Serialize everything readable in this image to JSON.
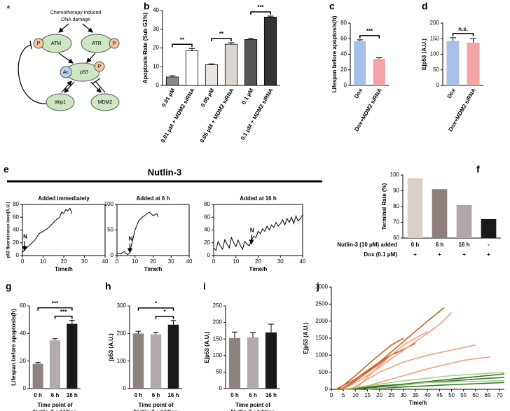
{
  "diagram": {
    "panel": "a",
    "title": [
      "Chemotherapy induced",
      "DNA damage"
    ],
    "nodes": {
      "atm": "ATM",
      "atr": "ATR",
      "p53": "p53",
      "ac": "Ac",
      "p_atm": "P",
      "p_atr": "P",
      "p_p53": "P",
      "wip1": "Wip1",
      "mdm2": "MDM2"
    }
  },
  "nutlin_header": {
    "panel": "e",
    "title": "Nutlin-3"
  },
  "chart_data": [
    {
      "type": "bar",
      "panel": "b",
      "ylabel": "Apoptosis Rate (Sub G1%)",
      "categories": [
        "0.01 μM",
        "0.01 μM + MDM2 siRNA",
        "0.05 μM",
        "0.05 μM + MDM2 siRNA",
        "0.1 μM",
        "0.1 μM + MDM2 siRNA"
      ],
      "values": [
        4.5,
        18.5,
        11,
        22,
        24.5,
        36.5
      ],
      "errors": [
        0.7,
        1.2,
        0.5,
        0.8,
        0.7,
        0.5
      ],
      "colors": [
        "#8a8a8a",
        "#ffffff",
        "#ece6e2",
        "#ddd5d0",
        "#555555",
        "#333333"
      ],
      "edgecolor": "#000000",
      "ylim": [
        0,
        40
      ],
      "yticks": [
        0,
        10,
        20,
        30,
        40
      ],
      "brackets": [
        {
          "pair": [
            0,
            1
          ],
          "label": "**"
        },
        {
          "pair": [
            2,
            3
          ],
          "label": "**"
        },
        {
          "pair": [
            4,
            5
          ],
          "label": "***"
        }
      ]
    },
    {
      "type": "bar",
      "panel": "c",
      "ylabel": "Lifespan before apoptosis(h)",
      "categories": [
        "Dox",
        "Dox+MDM2 siRNA"
      ],
      "values": [
        57,
        34
      ],
      "errors": [
        1.5,
        1.5
      ],
      "colors": [
        "#a8c0e8",
        "#f4a4a4"
      ],
      "ylim": [
        0,
        80
      ],
      "yticks": [
        0,
        20,
        40,
        60,
        80
      ],
      "brackets": [
        {
          "pair": [
            0,
            1
          ],
          "label": "***"
        }
      ]
    },
    {
      "type": "bar",
      "panel": "d",
      "ylabel": "E∫p53 (A.U.)",
      "categories": [
        "Dox",
        "Dox+MDM2 siRNA"
      ],
      "values": [
        143,
        137
      ],
      "errors": [
        10,
        13
      ],
      "colors": [
        "#a8c0e8",
        "#f4a4a4"
      ],
      "ylim": [
        0,
        200
      ],
      "yticks": [
        0,
        50,
        100,
        150,
        200
      ],
      "brackets": [
        {
          "pair": [
            0,
            1
          ],
          "label": "n.s."
        }
      ]
    },
    {
      "type": "line",
      "title": "Added immediately",
      "ylabel": "p53 fluorescence level(A.U.)",
      "xlabel": "Time/h",
      "x": [
        0,
        2,
        4,
        6,
        8,
        10,
        12,
        14,
        16,
        18,
        19,
        20,
        21,
        22,
        23,
        24
      ],
      "series": [
        {
          "color": "#000000",
          "values": [
            5,
            12,
            18,
            24,
            34,
            38,
            42,
            48,
            55,
            60,
            68,
            66,
            72,
            70,
            74,
            65
          ]
        }
      ],
      "xlim": [
        0,
        40
      ],
      "xticks": [
        0,
        10,
        20,
        30,
        40
      ],
      "ylim": [
        0,
        80
      ],
      "yticks": [
        0,
        20,
        40,
        60,
        80
      ],
      "annotations": [
        {
          "text": "N",
          "x": 0
        }
      ]
    },
    {
      "type": "line",
      "title": "Added at 6 h",
      "xlabel": "Time/h",
      "x": [
        0,
        2,
        4,
        5,
        6,
        7,
        8,
        10,
        12,
        14,
        16,
        18,
        20,
        22,
        23
      ],
      "series": [
        {
          "color": "#000000",
          "values": [
            5,
            3,
            8,
            4,
            2,
            5,
            20,
            50,
            68,
            75,
            80,
            85,
            78,
            82,
            76
          ]
        }
      ],
      "xlim": [
        0,
        40
      ],
      "xticks": [
        0,
        10,
        20,
        30,
        40
      ],
      "ylim": [
        0,
        100
      ],
      "yticks": [
        0,
        50,
        100
      ],
      "annotations": [
        {
          "text": "N",
          "x": 6
        }
      ]
    },
    {
      "type": "line",
      "title": "Added at 16 h",
      "xlabel": "Time/h",
      "x": [
        0,
        1,
        2,
        3,
        4,
        5,
        6,
        7,
        8,
        9,
        10,
        11,
        12,
        13,
        14,
        15,
        16,
        17,
        18,
        19,
        20,
        21,
        22,
        23,
        24,
        25,
        26,
        27,
        28,
        29,
        30,
        31,
        32,
        33,
        34,
        35,
        36,
        37,
        38,
        39,
        40
      ],
      "series": [
        {
          "color": "#000000",
          "values": [
            12,
            8,
            22,
            15,
            10,
            25,
            18,
            12,
            28,
            20,
            14,
            24,
            16,
            10,
            22,
            18,
            15,
            24,
            30,
            28,
            38,
            34,
            42,
            38,
            46,
            40,
            48,
            44,
            52,
            46,
            50,
            56,
            48,
            58,
            52,
            60,
            50,
            62,
            54,
            58,
            64
          ]
        }
      ],
      "xlim": [
        0,
        40
      ],
      "xticks": [
        0,
        10,
        20,
        30,
        40
      ],
      "ylim": [
        0,
        80
      ],
      "yticks": [
        0,
        20,
        40,
        60,
        80
      ],
      "annotations": [
        {
          "text": "N",
          "x": 16
        }
      ]
    },
    {
      "type": "bar",
      "panel": "f",
      "ylabel": "Terminal Rate (%)",
      "xlabel": "Nutlin-3 (10 μM) added",
      "categories": [
        "0 h",
        "6 h",
        "16 h",
        "-"
      ],
      "values": [
        98,
        91,
        81,
        72
      ],
      "colors": [
        "#d9d0cc",
        "#8c7f7c",
        "#b0a7a8",
        "#1a1a1a"
      ],
      "ylim": [
        60,
        100
      ],
      "yticks": [
        60,
        70,
        80,
        90,
        100
      ],
      "rows": [
        {
          "label": "Dox (0.1 μM)",
          "values": [
            "+",
            "+",
            "+",
            "+"
          ]
        }
      ]
    },
    {
      "type": "bar",
      "panel": "g",
      "ylabel": "Lifespan before apoptosis(h)",
      "xlabel": [
        "Time point of",
        "Nutlin-3 addition"
      ],
      "categories": [
        "0 h",
        "6 h",
        "16 h"
      ],
      "values": [
        18,
        35,
        47
      ],
      "errors": [
        1,
        1.2,
        2.5
      ],
      "colors": [
        "#8c827f",
        "#b3abab",
        "#1a1a1a"
      ],
      "ylim": [
        0,
        60
      ],
      "yticks": [
        0,
        20,
        40,
        60
      ],
      "brackets": [
        {
          "pair": [
            1,
            2
          ],
          "label": "***"
        },
        {
          "pair": [
            0,
            2
          ],
          "label": "***"
        }
      ]
    },
    {
      "type": "bar",
      "panel": "h",
      "ylabel": "∫p53 (A.U.)",
      "xlabel": [
        "Time point of",
        "Nutlin-3 addition"
      ],
      "categories": [
        "0 h",
        "6 h",
        "16 h"
      ],
      "values": [
        200,
        197,
        232
      ],
      "errors": [
        8,
        7,
        15
      ],
      "colors": [
        "#8c827f",
        "#b3abab",
        "#1a1a1a"
      ],
      "ylim": [
        0,
        300
      ],
      "yticks": [
        0,
        100,
        200,
        300
      ],
      "brackets": [
        {
          "pair": [
            1,
            2
          ],
          "label": "*"
        },
        {
          "pair": [
            0,
            2
          ],
          "label": "*"
        }
      ]
    },
    {
      "type": "bar",
      "panel": "i",
      "ylabel": "E∫p53 (A.U.)",
      "xlabel": [
        "Time point of",
        "Nutlin-3 addition"
      ],
      "categories": [
        "0 h",
        "6 h",
        "16 h"
      ],
      "values": [
        153,
        155,
        170
      ],
      "errors": [
        18,
        15,
        25
      ],
      "colors": [
        "#8c827f",
        "#b3abab",
        "#1a1a1a"
      ],
      "ylim": [
        0,
        250
      ],
      "yticks": [
        0,
        50,
        100,
        150,
        200,
        250
      ]
    },
    {
      "type": "line",
      "panel": "j",
      "ylabel": "E∫p53 (A.U.)",
      "xlabel": "Time/h",
      "series": [
        {
          "color": "#c8621f",
          "x": [
            2,
            10,
            20,
            30,
            40,
            47
          ],
          "values": [
            0,
            300,
            800,
            1400,
            2000,
            2400
          ]
        },
        {
          "color": "#c8621f",
          "x": [
            3,
            10,
            18,
            25,
            30
          ],
          "values": [
            0,
            400,
            900,
            1300,
            1500
          ]
        },
        {
          "color": "#c8621f",
          "x": [
            4,
            12,
            20,
            27
          ],
          "values": [
            0,
            350,
            800,
            1100
          ]
        },
        {
          "color": "#c8621f",
          "x": [
            5,
            15,
            25,
            35
          ],
          "values": [
            0,
            500,
            1000,
            1350
          ]
        },
        {
          "color": "#f4a080",
          "x": [
            5,
            15,
            25,
            35,
            45,
            50
          ],
          "values": [
            0,
            400,
            900,
            1400,
            1900,
            2250
          ]
        },
        {
          "color": "#f4a080",
          "x": [
            8,
            20,
            30,
            40,
            50,
            60
          ],
          "values": [
            0,
            500,
            800,
            1000,
            1150,
            1300
          ]
        },
        {
          "color": "#f4a080",
          "x": [
            10,
            25,
            40,
            55,
            66
          ],
          "values": [
            0,
            300,
            600,
            850,
            950
          ]
        },
        {
          "color": "#f4a080",
          "x": [
            10,
            20,
            30,
            40
          ],
          "values": [
            0,
            700,
            1300,
            1700
          ]
        },
        {
          "color": "#3a7a2a",
          "x": [
            5,
            20,
            40,
            60,
            72
          ],
          "values": [
            0,
            100,
            200,
            300,
            350
          ]
        },
        {
          "color": "#3a7a2a",
          "x": [
            5,
            25,
            45,
            72
          ],
          "values": [
            0,
            50,
            120,
            200
          ]
        },
        {
          "color": "#a8d08a",
          "x": [
            5,
            30,
            50,
            72
          ],
          "values": [
            0,
            250,
            400,
            500
          ]
        },
        {
          "color": "#3a7a2a",
          "x": [
            10,
            30,
            50,
            72
          ],
          "values": [
            0,
            150,
            300,
            450
          ]
        },
        {
          "color": "#a8d08a",
          "x": [
            15,
            40,
            72
          ],
          "values": [
            0,
            200,
            250
          ]
        }
      ],
      "xlim": [
        0,
        72
      ],
      "xticks": [
        0,
        5,
        10,
        15,
        20,
        25,
        30,
        35,
        40,
        45,
        50,
        55,
        60,
        65,
        70
      ],
      "ylim": [
        0,
        3000
      ],
      "yticks": [
        0,
        500,
        1000,
        1500,
        2000,
        2500,
        3000
      ]
    }
  ]
}
